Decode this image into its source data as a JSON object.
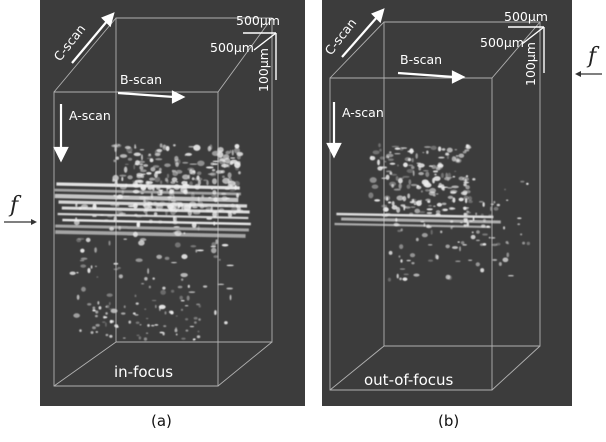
{
  "panels": [
    {
      "id": "a",
      "caption": "(a)",
      "focus_label": "in-focus",
      "labels": {
        "c_scan": "C-scan",
        "b_scan": "B-scan",
        "a_scan": "A-scan",
        "x_scale": "500µm",
        "z_scale": "500µm",
        "y_scale": "100µm"
      },
      "focal_marker": "f"
    },
    {
      "id": "b",
      "caption": "(b)",
      "focus_label": "out-of-focus",
      "labels": {
        "c_scan": "C-scan",
        "b_scan": "B-scan",
        "a_scan": "A-scan",
        "x_scale": "500µm",
        "z_scale": "500µm",
        "y_scale": "100µm"
      },
      "focal_marker": "f"
    }
  ],
  "colors": {
    "background": "#3c3c3c",
    "lines": "#cfcfcf",
    "speckle": "#e8e8e8"
  }
}
